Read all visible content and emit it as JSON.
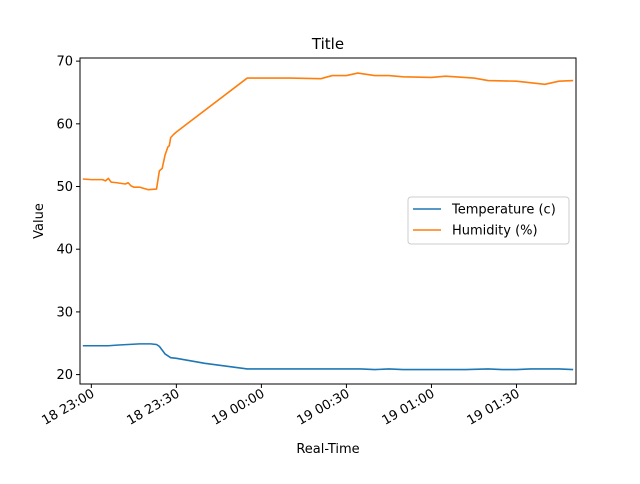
{
  "chart_data": {
    "type": "line",
    "title": "Title",
    "xlabel": "Real-Time",
    "ylabel": "Value",
    "x_axis": {
      "type": "time",
      "range": [
        "2024-01-18T22:56:00",
        "2024-01-19T01:51:00"
      ],
      "ticks": [
        {
          "value": "2024-01-18T23:00:00",
          "label": "18 23:00"
        },
        {
          "value": "2024-01-18T23:30:00",
          "label": "18 23:30"
        },
        {
          "value": "2024-01-19T00:00:00",
          "label": "19 00:00"
        },
        {
          "value": "2024-01-19T00:30:00",
          "label": "19 00:30"
        },
        {
          "value": "2024-01-19T01:00:00",
          "label": "19 01:00"
        },
        {
          "value": "2024-01-19T01:30:00",
          "label": "19 01:30"
        }
      ]
    },
    "y_axis": {
      "range": [
        18.5,
        70.5
      ],
      "ticks": [
        {
          "value": 20,
          "label": "20"
        },
        {
          "value": 30,
          "label": "30"
        },
        {
          "value": 40,
          "label": "40"
        },
        {
          "value": 50,
          "label": "50"
        },
        {
          "value": 60,
          "label": "60"
        },
        {
          "value": 70,
          "label": "70"
        }
      ]
    },
    "grid": false,
    "legend": {
      "position": "center-right"
    },
    "series": [
      {
        "name": "Temperature (c)",
        "color": "#1f77b4",
        "points": [
          [
            "2024-01-18T22:57:00",
            24.6
          ],
          [
            "2024-01-18T23:00:00",
            24.6
          ],
          [
            "2024-01-18T23:06:00",
            24.6
          ],
          [
            "2024-01-18T23:09:00",
            24.7
          ],
          [
            "2024-01-18T23:13:00",
            24.8
          ],
          [
            "2024-01-18T23:17:00",
            24.9
          ],
          [
            "2024-01-18T23:21:00",
            24.9
          ],
          [
            "2024-01-18T23:23:00",
            24.8
          ],
          [
            "2024-01-18T23:24:00",
            24.5
          ],
          [
            "2024-01-18T23:25:00",
            23.9
          ],
          [
            "2024-01-18T23:26:00",
            23.3
          ],
          [
            "2024-01-18T23:27:00",
            23.0
          ],
          [
            "2024-01-18T23:28:00",
            22.7
          ],
          [
            "2024-01-18T23:30:00",
            22.6
          ],
          [
            "2024-01-18T23:40:00",
            21.8
          ],
          [
            "2024-01-18T23:55:00",
            20.9
          ],
          [
            "2024-01-19T00:10:00",
            20.9
          ],
          [
            "2024-01-19T00:25:00",
            20.9
          ],
          [
            "2024-01-19T00:35:00",
            20.9
          ],
          [
            "2024-01-19T00:40:00",
            20.8
          ],
          [
            "2024-01-19T00:45:00",
            20.9
          ],
          [
            "2024-01-19T00:50:00",
            20.8
          ],
          [
            "2024-01-19T01:00:00",
            20.8
          ],
          [
            "2024-01-19T01:12:00",
            20.8
          ],
          [
            "2024-01-19T01:20:00",
            20.9
          ],
          [
            "2024-01-19T01:25:00",
            20.8
          ],
          [
            "2024-01-19T01:30:00",
            20.8
          ],
          [
            "2024-01-19T01:35:00",
            20.9
          ],
          [
            "2024-01-19T01:45:00",
            20.9
          ],
          [
            "2024-01-19T01:50:00",
            20.8
          ]
        ]
      },
      {
        "name": "Humidity (%)",
        "color": "#ff7f0e",
        "points": [
          [
            "2024-01-18T22:57:00",
            51.2
          ],
          [
            "2024-01-18T23:00:00",
            51.1
          ],
          [
            "2024-01-18T23:04:00",
            51.1
          ],
          [
            "2024-01-18T23:05:00",
            50.9
          ],
          [
            "2024-01-18T23:06:00",
            51.3
          ],
          [
            "2024-01-18T23:07:00",
            50.7
          ],
          [
            "2024-01-18T23:09:00",
            50.6
          ],
          [
            "2024-01-18T23:12:00",
            50.4
          ],
          [
            "2024-01-18T23:13:00",
            50.6
          ],
          [
            "2024-01-18T23:14:00",
            50.1
          ],
          [
            "2024-01-18T23:15:00",
            49.9
          ],
          [
            "2024-01-18T23:17:00",
            49.9
          ],
          [
            "2024-01-18T23:20:00",
            49.5
          ],
          [
            "2024-01-18T23:23:00",
            49.6
          ],
          [
            "2024-01-18T23:24:00",
            52.5
          ],
          [
            "2024-01-18T23:25:00",
            52.9
          ],
          [
            "2024-01-18T23:26:00",
            55.0
          ],
          [
            "2024-01-18T23:27:00",
            56.3
          ],
          [
            "2024-01-18T23:27:30",
            56.5
          ],
          [
            "2024-01-18T23:28:00",
            57.8
          ],
          [
            "2024-01-18T23:29:00",
            58.3
          ],
          [
            "2024-01-18T23:30:00",
            58.7
          ],
          [
            "2024-01-18T23:55:00",
            67.3
          ],
          [
            "2024-01-19T00:10:00",
            67.3
          ],
          [
            "2024-01-19T00:21:00",
            67.2
          ],
          [
            "2024-01-19T00:25:00",
            67.7
          ],
          [
            "2024-01-19T00:30:00",
            67.7
          ],
          [
            "2024-01-19T00:34:00",
            68.1
          ],
          [
            "2024-01-19T00:40:00",
            67.7
          ],
          [
            "2024-01-19T00:45:00",
            67.7
          ],
          [
            "2024-01-19T00:50:00",
            67.5
          ],
          [
            "2024-01-19T01:00:00",
            67.4
          ],
          [
            "2024-01-19T01:05:00",
            67.6
          ],
          [
            "2024-01-19T01:15:00",
            67.3
          ],
          [
            "2024-01-19T01:20:00",
            66.9
          ],
          [
            "2024-01-19T01:30:00",
            66.8
          ],
          [
            "2024-01-19T01:36:00",
            66.5
          ],
          [
            "2024-01-19T01:40:00",
            66.3
          ],
          [
            "2024-01-19T01:45:00",
            66.8
          ],
          [
            "2024-01-19T01:50:00",
            66.9
          ]
        ]
      }
    ]
  }
}
